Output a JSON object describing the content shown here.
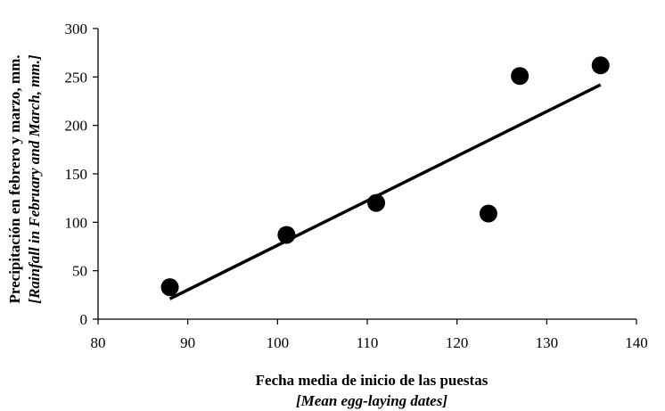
{
  "chart_data": {
    "type": "scatter",
    "xlabel": "Fecha media de inicio de las puestas",
    "xlabel_translation": "[Mean egg-laying dates]",
    "ylabel": "Precipitación en febrero y marzo, mm.",
    "ylabel_translation": "[Rainfall in February and March, mm.]",
    "xlim": [
      80,
      140
    ],
    "ylim": [
      0,
      300
    ],
    "x_ticks": [
      "80",
      "90",
      "100",
      "110",
      "120",
      "130",
      "140"
    ],
    "y_ticks": [
      "0",
      "50",
      "100",
      "150",
      "200",
      "250",
      "300"
    ],
    "grid": false,
    "legend": "none",
    "series": [
      {
        "points": [
          {
            "x": 88,
            "y": 33
          },
          {
            "x": 101,
            "y": 87
          },
          {
            "x": 111,
            "y": 120
          },
          {
            "x": 123.5,
            "y": 109
          },
          {
            "x": 127,
            "y": 251
          },
          {
            "x": 136,
            "y": 262
          }
        ]
      }
    ],
    "trendline": {
      "x": [
        88,
        136
      ],
      "y": [
        21,
        242
      ]
    }
  }
}
